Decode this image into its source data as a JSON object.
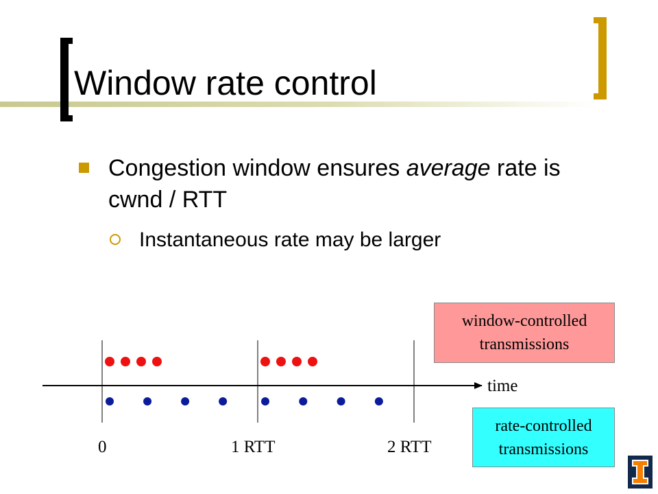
{
  "slide": {
    "title": "Window rate control",
    "bullets": [
      {
        "parts": [
          "Congestion window ensures ",
          "average",
          " rate is cwnd / RTT"
        ]
      },
      {
        "text": "Instantaneous rate may be larger"
      }
    ]
  },
  "diagram": {
    "axis_label": "time",
    "tick_labels": [
      "0",
      "1 RTT",
      "2 RTT"
    ],
    "window_box": {
      "line1": "window-controlled",
      "line2": "transmissions"
    },
    "rate_box": {
      "line1": "rate-controlled",
      "line2": "transmissions"
    },
    "window_packets_per_rtt": 4,
    "rate_packets_per_rtt": 4,
    "rtt_periods_with_packets": 2,
    "colors": {
      "window_dots": "#ee1111",
      "rate_dots": "#0b1c9b",
      "window_box": "#ff9999",
      "rate_box": "#33ffff",
      "accent": "#cc9900"
    }
  },
  "logo": {
    "icon": "illinois-i-logo-icon"
  }
}
